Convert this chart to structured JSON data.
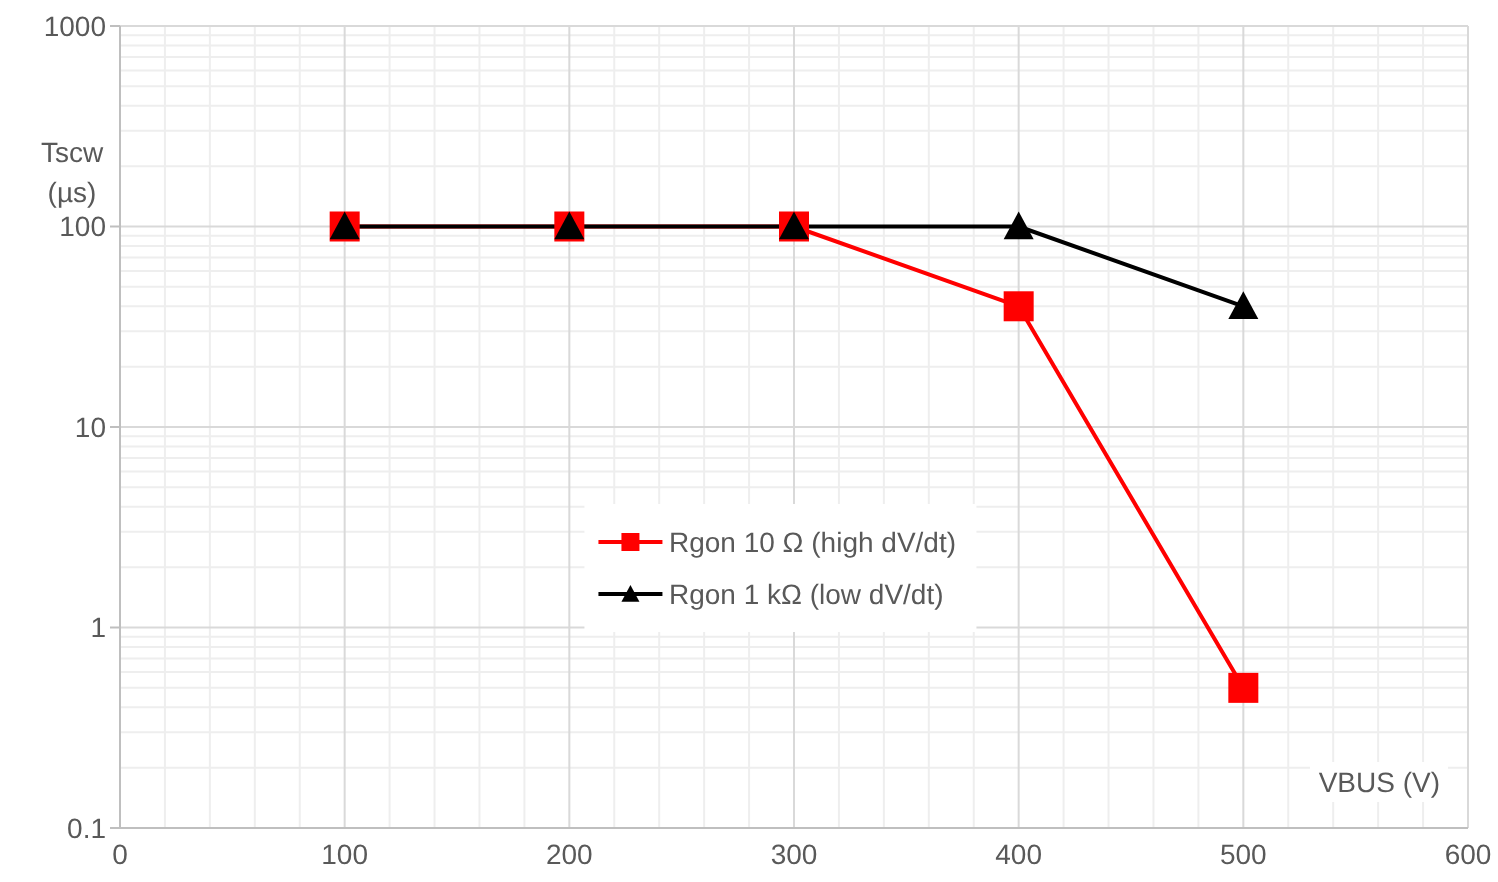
{
  "chart_data": {
    "type": "line",
    "xlabel": "VBUS (V)",
    "ylabel": "Tscw (µs)",
    "x": [
      100,
      200,
      300,
      400,
      500
    ],
    "series": [
      {
        "name": "Rgon 10 Ω (high dV/dt)",
        "color": "#ff0000",
        "marker": "square",
        "values": [
          100,
          100,
          100,
          40,
          0.5
        ]
      },
      {
        "name": "Rgon 1 kΩ (low dV/dt)",
        "color": "#000000",
        "marker": "triangle",
        "values": [
          100,
          100,
          100,
          100,
          40
        ]
      }
    ],
    "xlim": [
      0,
      600
    ],
    "xticks": [
      0,
      100,
      200,
      300,
      400,
      500,
      600
    ],
    "ylim": [
      0.1,
      1000
    ],
    "yticks": [
      0.1,
      1,
      10,
      100,
      1000
    ],
    "log": "y",
    "grid": true,
    "legend": "center",
    "line_style": "solid"
  }
}
